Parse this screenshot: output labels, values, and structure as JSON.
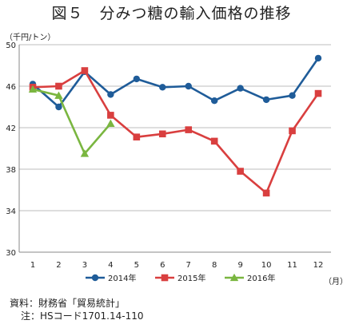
{
  "chart_data": {
    "type": "line",
    "title": "図５　分みつ糖の輸入価格の推移",
    "ylabel": "（千円/トン）",
    "xlabel": "（月）",
    "categories": [
      "1",
      "2",
      "3",
      "4",
      "5",
      "6",
      "7",
      "8",
      "9",
      "10",
      "11",
      "12"
    ],
    "ylim": [
      30,
      50
    ],
    "yticks": [
      30,
      34,
      38,
      42,
      46,
      50
    ],
    "grid": true,
    "legend_position": "bottom",
    "series": [
      {
        "name": "2014年",
        "color": "#1f5c99",
        "marker": "circle",
        "values": [
          46.2,
          44.0,
          47.4,
          45.2,
          46.7,
          45.9,
          46.0,
          44.6,
          45.8,
          44.7,
          45.1,
          48.7
        ]
      },
      {
        "name": "2015年",
        "color": "#d93f3f",
        "marker": "square",
        "values": [
          45.9,
          46.0,
          47.5,
          43.2,
          41.1,
          41.4,
          41.8,
          40.7,
          37.8,
          35.7,
          41.7,
          45.3
        ]
      },
      {
        "name": "2016年",
        "color": "#7ab640",
        "marker": "triangle",
        "values": [
          45.7,
          45.1,
          39.5,
          42.4,
          null,
          null,
          null,
          null,
          null,
          null,
          null,
          null
        ]
      }
    ]
  },
  "notes": {
    "source": "資料：財務省「貿易統計」",
    "remark": "注：HSコード1701.14-110"
  }
}
